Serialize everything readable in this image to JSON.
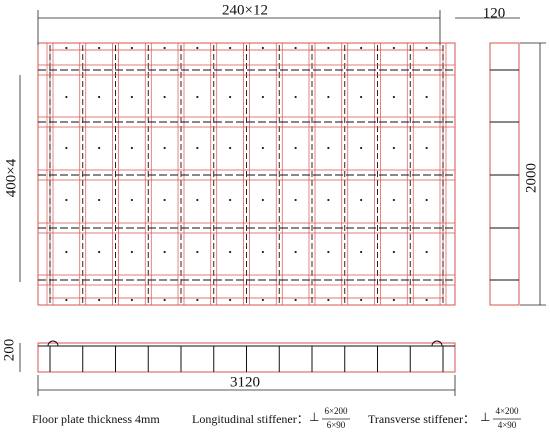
{
  "top_dimension": "240×12",
  "side_width": "120",
  "left_dimension": "400×4",
  "side_height": "2000",
  "elevation_height": "200",
  "total_length": "3120",
  "caption": {
    "floor_plate": "Floor plate thickness  4mm",
    "longitudinal": {
      "label": "Longitudinal stiffener：",
      "symbol": "⊥",
      "numerator": "6×200",
      "denominator": "6×90"
    },
    "transverse": {
      "label": "Transverse stiffener：",
      "symbol": "⊥",
      "numerator": "4×200",
      "denominator": "4×90"
    }
  }
}
